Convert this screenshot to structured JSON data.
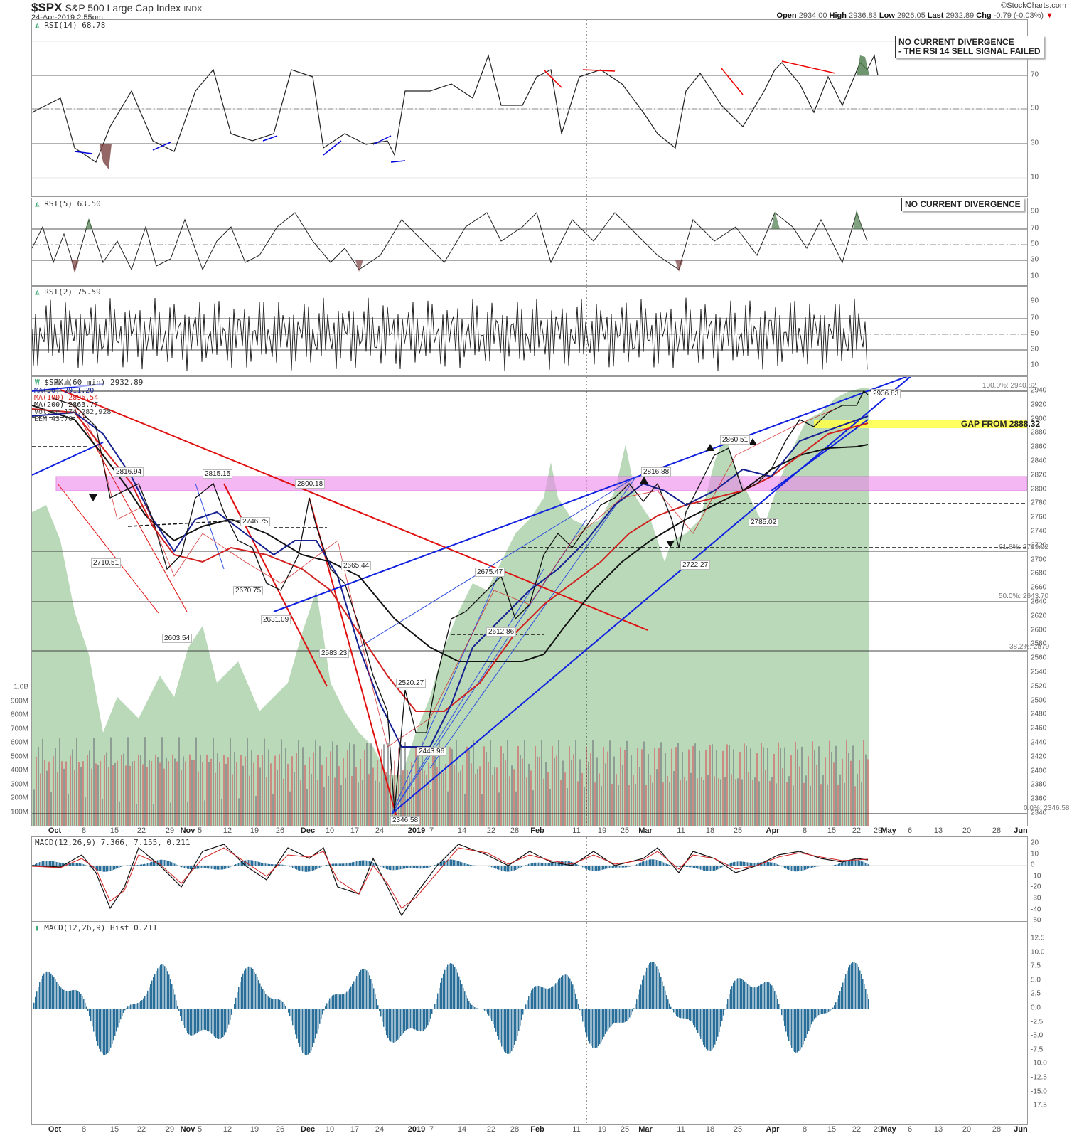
{
  "header": {
    "symbol": "$SPX",
    "name": "S&P 500 Large Cap Index",
    "exchange": "INDX",
    "date": "24-Apr-2019 2:55pm",
    "brand": "©StockCharts.com",
    "open_label": "Open",
    "open": "2934.00",
    "high_label": "High",
    "high": "2936.83",
    "low_label": "Low",
    "low": "2926.05",
    "last_label": "Last",
    "last": "2932.89",
    "chg_label": "Chg",
    "chg": "-0.79 (-0.03%)",
    "chg_icon": "down-triangle"
  },
  "panels": {
    "rsi14": {
      "label": "RSI(14) 68.78",
      "note": [
        "NO CURRENT DIVERGENCE",
        "- THE RSI 14 SELL SIGNAL FAILED"
      ],
      "ticks": [
        "90",
        "70",
        "50",
        "30",
        "10"
      ]
    },
    "rsi5": {
      "label": "RSI(5) 63.50",
      "note": [
        "NO CURRENT DIVERGENCE"
      ],
      "ticks": [
        "90",
        "70",
        "50",
        "30",
        "10"
      ]
    },
    "rsi2": {
      "label": "RSI(2) 75.59",
      "ticks": [
        "90",
        "70",
        "50",
        "30",
        "10"
      ]
    },
    "price": {
      "label": "$SPX (60 min) 2932.89",
      "legend": [
        "MA(50) 2911.20",
        "MA(100) 2896.54",
        "MA(200) 2863.77",
        "Volume 174,282,928",
        "EEM 43.70"
      ],
      "ticks": [
        "2940",
        "2920",
        "2900",
        "2880",
        "2860",
        "2840",
        "2820",
        "2800",
        "2780",
        "2760",
        "2740",
        "2720",
        "2700",
        "2680",
        "2660",
        "2640",
        "2620",
        "2600",
        "2580",
        "2560",
        "2540",
        "2520",
        "2500",
        "2480",
        "2460",
        "2440",
        "2420",
        "2400",
        "2380",
        "2360",
        "2340"
      ],
      "vol_ticks": [
        "1.0B",
        "900M",
        "800M",
        "700M",
        "600M",
        "500M",
        "400M",
        "300M",
        "200M",
        "100M"
      ],
      "gap_note": "GAP FROM 2888.32",
      "fib": [
        "100.0%: 2940.82",
        "61.8%: 2719.92",
        "50.0%: 2643.70",
        "38.2%: 2579",
        "0.0%: 2346.58"
      ],
      "annotations": [
        "2816.94",
        "2815.15",
        "2800.18",
        "2746.75",
        "2710.51",
        "2670.75",
        "2631.09",
        "2603.54",
        "2665.44",
        "2583.23",
        "2675.47",
        "2612.86",
        "2520.27",
        "2443.96",
        "2346.58",
        "2816.88",
        "2860.51",
        "2785.02",
        "2722.27",
        "2936.83"
      ]
    },
    "macd": {
      "label": "MACD(12,26,9) 7.366, 7.155, 0.211",
      "ticks": [
        "20",
        "10",
        "0",
        "-10",
        "-20",
        "-30",
        "-40",
        "-50"
      ]
    },
    "hist": {
      "label": "MACD(12,26,9) Hist 0.211",
      "ticks": [
        "12.5",
        "10.0",
        "7.5",
        "5.0",
        "2.5",
        "0.0",
        "-2.5",
        "-5.0",
        "-7.5",
        "-10.0",
        "-12.5",
        "-15.0",
        "-17.5"
      ]
    }
  },
  "xaxis": [
    "Oct",
    "8",
    "15",
    "22",
    "29",
    "Nov",
    "5",
    "12",
    "19",
    "26",
    "Dec",
    "10",
    "17",
    "24",
    "2019",
    "7",
    "14",
    "22",
    "28",
    "Feb",
    "11",
    "19",
    "25",
    "Mar",
    "11",
    "18",
    "25",
    "Apr",
    "8",
    "15",
    "22",
    "29",
    "May",
    "6",
    "13",
    "20",
    "28",
    "Jun"
  ],
  "chart_data": [
    {
      "type": "line",
      "title": "$SPX S&P 500 Large Cap Index (60 min)",
      "x": [
        "Oct 1",
        "Oct 15",
        "Oct 29",
        "Nov 7",
        "Nov 26",
        "Dec 3",
        "Dec 24",
        "Jan 7",
        "Jan 22",
        "Feb 11",
        "Feb 25",
        "Mar 8",
        "Mar 18",
        "Mar 25",
        "Apr 8",
        "Apr 24"
      ],
      "series": [
        {
          "name": "SPX close (approx)",
          "values": [
            2925,
            2760,
            2640,
            2810,
            2660,
            2795,
            2347,
            2530,
            2635,
            2720,
            2800,
            2730,
            2835,
            2800,
            2890,
            2933
          ]
        },
        {
          "name": "MA(50)",
          "values": [
            2915,
            2800,
            2690,
            2760,
            2720,
            2730,
            2450,
            2480,
            2620,
            2710,
            2790,
            2790,
            2830,
            2830,
            2880,
            2911
          ]
        },
        {
          "name": "MA(100)",
          "values": [
            2920,
            2850,
            2740,
            2760,
            2730,
            2730,
            2560,
            2490,
            2580,
            2690,
            2770,
            2780,
            2810,
            2815,
            2860,
            2897
          ]
        },
        {
          "name": "MA(200)",
          "values": [
            2910,
            2880,
            2820,
            2790,
            2760,
            2750,
            2640,
            2580,
            2560,
            2640,
            2720,
            2750,
            2790,
            2800,
            2830,
            2864
          ]
        }
      ],
      "ylim": [
        2340,
        2960
      ],
      "annotations": {
        "peak": 2936.83,
        "low": 2346.58,
        "gap_from": 2888.32,
        "resistance_zone": [
          2800,
          2820
        ]
      },
      "fib_levels": {
        "100.0%": 2940.82,
        "61.8%": 2719.92,
        "50.0%": 2643.7,
        "38.2%": 2579,
        "0.0%": 2346.58
      }
    },
    {
      "type": "line",
      "title": "RSI(14)",
      "last": 68.78,
      "ylim": [
        0,
        100
      ],
      "reference_lines": [
        70,
        50,
        30
      ]
    },
    {
      "type": "line",
      "title": "RSI(5)",
      "last": 63.5,
      "ylim": [
        0,
        100
      ],
      "reference_lines": [
        70,
        50,
        30
      ]
    },
    {
      "type": "line",
      "title": "RSI(2)",
      "last": 75.59,
      "ylim": [
        0,
        100
      ],
      "reference_lines": [
        70,
        50,
        30
      ]
    },
    {
      "type": "line",
      "title": "MACD(12,26,9)",
      "values_last": {
        "macd": 7.366,
        "signal": 7.155,
        "hist": 0.211
      },
      "ylim": [
        -50,
        25
      ]
    },
    {
      "type": "bar",
      "title": "MACD(12,26,9) Hist",
      "last": 0.211,
      "ylim": [
        -17.5,
        15
      ]
    }
  ]
}
